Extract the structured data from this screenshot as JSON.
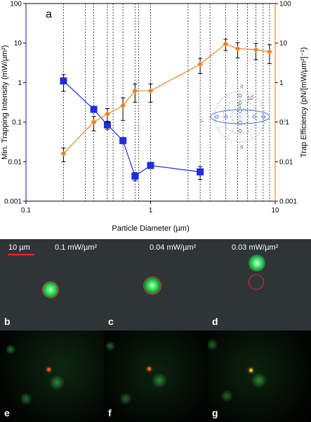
{
  "chart_data": {
    "type": "scatter",
    "panel_label": "a",
    "xlabel": "Particle Diameter (µm)",
    "ylabel_left": "Min. Trapping Intensity (mW/µm²)",
    "ylabel_right": "Trap Efficiency (pN/[mW/µm²]⁻¹)",
    "x_scale": "log",
    "y_scale": "log",
    "xlim": [
      0.1,
      10
    ],
    "ylim": [
      0.001,
      100
    ],
    "x_tick_labels": [
      "0.1",
      "1",
      "10"
    ],
    "y_tick_labels": [
      "0.001",
      "0.01",
      "0.1",
      "1",
      "10",
      "100"
    ],
    "left_axis_color": "#3a3ad8",
    "right_axis_color": "#f08a2c",
    "vertical_dashed_lines_x": [
      0.2,
      0.3,
      0.35,
      0.45,
      0.5,
      0.6,
      0.75,
      0.8,
      1.0,
      2.0,
      2.5,
      3.0,
      4.0,
      5.0,
      6.0,
      7.0,
      8.0,
      9.0
    ],
    "series": [
      {
        "color": "#1f2ee0",
        "marker": "square",
        "axis": "left",
        "x": [
          0.2,
          0.35,
          0.45,
          0.6,
          0.75,
          1.0,
          2.5
        ],
        "y": [
          1.1,
          0.21,
          0.085,
          0.034,
          0.0043,
          0.008,
          0.0055
        ],
        "err": [
          0.5,
          0.0,
          0.02,
          0.0,
          0.001,
          0.0,
          0.002
        ]
      },
      {
        "color": "#f0821e",
        "marker": "diamond",
        "axis": "right",
        "x": [
          0.2,
          0.35,
          0.45,
          0.6,
          0.75,
          1.0,
          2.5,
          4.0,
          5.0,
          7.0,
          9.0
        ],
        "y": [
          0.016,
          0.1,
          0.16,
          0.26,
          0.62,
          0.62,
          2.9,
          9.5,
          7.2,
          6.8,
          6.0
        ],
        "err": [
          0.006,
          0.04,
          0.06,
          0.15,
          0.3,
          0.3,
          1.2,
          3.0,
          3.0,
          3.0,
          3.0
        ]
      }
    ],
    "inset_labels": [
      "10",
      "5",
      "II",
      "II",
      "⊥",
      "⊥"
    ]
  },
  "micrographs": {
    "scale_bar": "10 µm",
    "top_row": [
      {
        "label": "b",
        "intensity": "0.1 mW/µm²"
      },
      {
        "label": "c",
        "intensity": "0.04 mW/µm²"
      },
      {
        "label": "d",
        "intensity": "0.03 mW/µm²"
      }
    ],
    "bottom_row": [
      {
        "label": "e"
      },
      {
        "label": "f"
      },
      {
        "label": "g"
      }
    ]
  }
}
